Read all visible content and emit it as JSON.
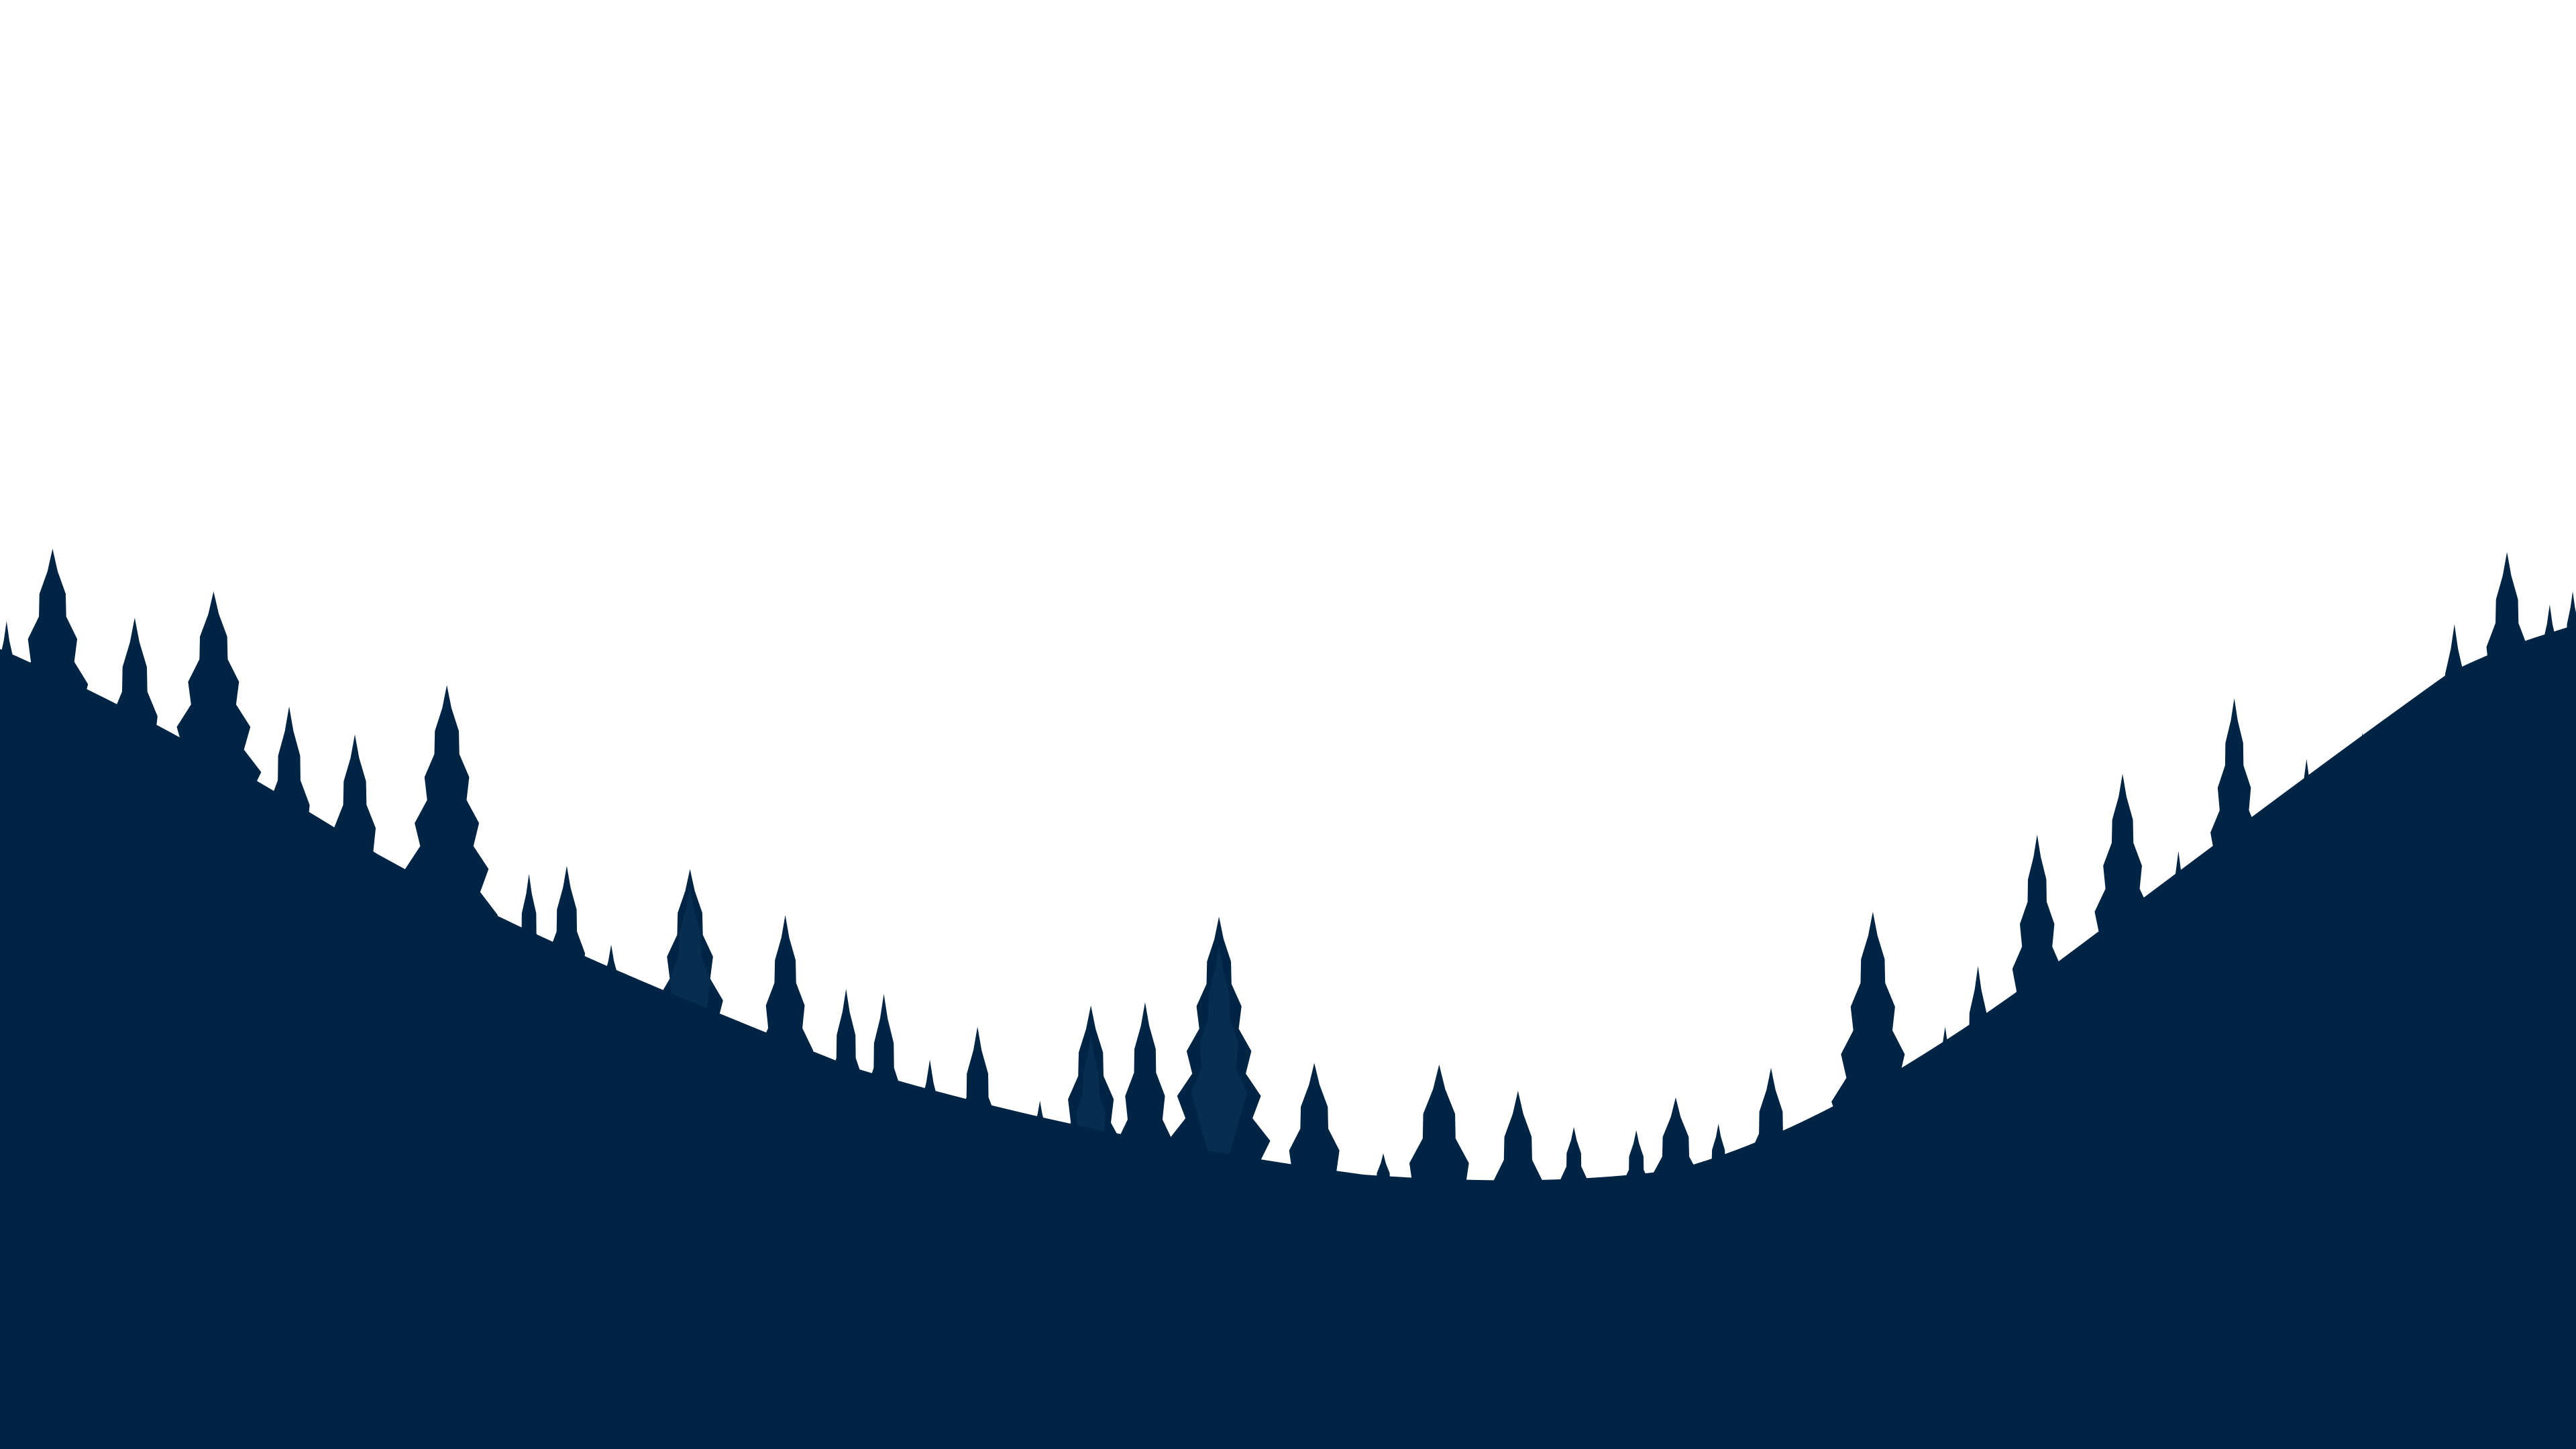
{
  "scene": {
    "sky_color": "#ffffff",
    "forest_color": "#002444",
    "highlight_color": "#0d4168",
    "icon": "pine-forest-silhouette"
  }
}
